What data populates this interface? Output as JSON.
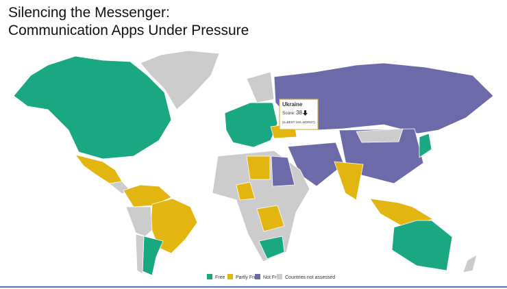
{
  "header": {
    "title_lines": [
      "Silencing the Messenger:",
      "Communication Apps Under Pressure"
    ]
  },
  "tooltip": {
    "country": "Ukraine",
    "score_label": "Score:",
    "score": 38,
    "scale_note": "(0=BEST 100=WORST)"
  },
  "legend": {
    "items": [
      {
        "label": "Free",
        "color": "#1aa882"
      },
      {
        "label": "Partly Free",
        "color": "#e3b511"
      },
      {
        "label": "Not Free",
        "color": "#6c6aa9"
      },
      {
        "label": "Countries not assessed",
        "color": "#cccccc"
      }
    ]
  }
}
